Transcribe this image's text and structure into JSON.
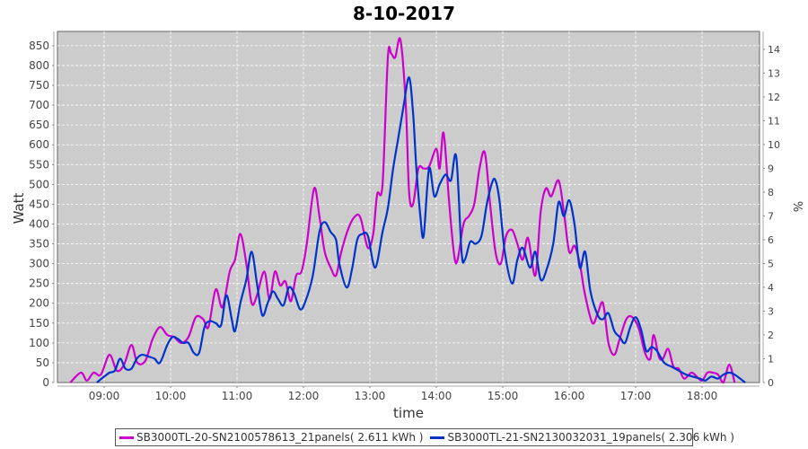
{
  "chart_data": {
    "type": "line",
    "title": "8-10-2017",
    "xlabel": "time",
    "ylabel": "Watt",
    "y2label": "%",
    "xlim": [
      8.297,
      18.865
    ],
    "ylim": [
      0,
      886
    ],
    "y2lim": [
      0,
      14.75
    ],
    "grid": true,
    "legend_position": "bottom",
    "x_ticks": [
      {
        "value": 9,
        "label": "09:00"
      },
      {
        "value": 10,
        "label": "10:00"
      },
      {
        "value": 11,
        "label": "11:00"
      },
      {
        "value": 12,
        "label": "12:00"
      },
      {
        "value": 13,
        "label": "13:00"
      },
      {
        "value": 14,
        "label": "14:00"
      },
      {
        "value": 15,
        "label": "15:00"
      },
      {
        "value": 16,
        "label": "16:00"
      },
      {
        "value": 17,
        "label": "17:00"
      },
      {
        "value": 18,
        "label": "18:00"
      }
    ],
    "y_ticks": [
      "0",
      "50",
      "100",
      "150",
      "200",
      "250",
      "300",
      "350",
      "400",
      "450",
      "500",
      "550",
      "600",
      "650",
      "700",
      "750",
      "800",
      "850"
    ],
    "y2_ticks": [
      "0",
      "1",
      "2",
      "3",
      "4",
      "5",
      "6",
      "7",
      "8",
      "9",
      "10",
      "11",
      "12",
      "13",
      "14"
    ],
    "series": [
      {
        "name": "SB3000TL-20-SN2100578613_21panels( 2.611 kWh )",
        "color": "#cc00cc",
        "points": [
          [
            8.49,
            0
          ],
          [
            8.65,
            25
          ],
          [
            8.74,
            5
          ],
          [
            8.84,
            25
          ],
          [
            8.95,
            20
          ],
          [
            9.08,
            70
          ],
          [
            9.19,
            30
          ],
          [
            9.3,
            45
          ],
          [
            9.41,
            95
          ],
          [
            9.5,
            50
          ],
          [
            9.62,
            55
          ],
          [
            9.73,
            110
          ],
          [
            9.84,
            140
          ],
          [
            9.95,
            120
          ],
          [
            10.05,
            115
          ],
          [
            10.16,
            100
          ],
          [
            10.27,
            115
          ],
          [
            10.38,
            165
          ],
          [
            10.49,
            160
          ],
          [
            10.57,
            140
          ],
          [
            10.68,
            235
          ],
          [
            10.78,
            190
          ],
          [
            10.89,
            280
          ],
          [
            10.97,
            310
          ],
          [
            11.05,
            375
          ],
          [
            11.14,
            300
          ],
          [
            11.22,
            200
          ],
          [
            11.3,
            220
          ],
          [
            11.41,
            280
          ],
          [
            11.49,
            210
          ],
          [
            11.57,
            280
          ],
          [
            11.65,
            245
          ],
          [
            11.73,
            255
          ],
          [
            11.81,
            205
          ],
          [
            11.89,
            270
          ],
          [
            11.97,
            280
          ],
          [
            12.05,
            350
          ],
          [
            12.16,
            490
          ],
          [
            12.24,
            420
          ],
          [
            12.32,
            330
          ],
          [
            12.41,
            290
          ],
          [
            12.49,
            270
          ],
          [
            12.57,
            330
          ],
          [
            12.68,
            390
          ],
          [
            12.78,
            420
          ],
          [
            12.86,
            415
          ],
          [
            12.97,
            340
          ],
          [
            13.05,
            375
          ],
          [
            13.11,
            475
          ],
          [
            13.19,
            500
          ],
          [
            13.27,
            820
          ],
          [
            13.32,
            830
          ],
          [
            13.38,
            820
          ],
          [
            13.46,
            865
          ],
          [
            13.54,
            700
          ],
          [
            13.59,
            480
          ],
          [
            13.65,
            450
          ],
          [
            13.73,
            540
          ],
          [
            13.81,
            540
          ],
          [
            13.89,
            545
          ],
          [
            14.0,
            590
          ],
          [
            14.05,
            540
          ],
          [
            14.11,
            630
          ],
          [
            14.19,
            460
          ],
          [
            14.27,
            320
          ],
          [
            14.32,
            310
          ],
          [
            14.41,
            400
          ],
          [
            14.49,
            420
          ],
          [
            14.57,
            450
          ],
          [
            14.65,
            540
          ],
          [
            14.73,
            580
          ],
          [
            14.81,
            450
          ],
          [
            14.89,
            330
          ],
          [
            14.97,
            300
          ],
          [
            15.05,
            370
          ],
          [
            15.14,
            385
          ],
          [
            15.22,
            350
          ],
          [
            15.3,
            310
          ],
          [
            15.38,
            365
          ],
          [
            15.49,
            270
          ],
          [
            15.57,
            430
          ],
          [
            15.65,
            490
          ],
          [
            15.73,
            470
          ],
          [
            15.84,
            510
          ],
          [
            15.92,
            430
          ],
          [
            16.0,
            330
          ],
          [
            16.08,
            345
          ],
          [
            16.16,
            300
          ],
          [
            16.24,
            220
          ],
          [
            16.35,
            150
          ],
          [
            16.43,
            175
          ],
          [
            16.51,
            200
          ],
          [
            16.59,
            100
          ],
          [
            16.68,
            70
          ],
          [
            16.76,
            110
          ],
          [
            16.86,
            160
          ],
          [
            16.95,
            165
          ],
          [
            17.05,
            135
          ],
          [
            17.14,
            75
          ],
          [
            17.22,
            60
          ],
          [
            17.27,
            120
          ],
          [
            17.35,
            65
          ],
          [
            17.41,
            60
          ],
          [
            17.49,
            85
          ],
          [
            17.57,
            40
          ],
          [
            17.65,
            35
          ],
          [
            17.73,
            10
          ],
          [
            17.84,
            25
          ],
          [
            17.92,
            15
          ],
          [
            18.0,
            5
          ],
          [
            18.08,
            25
          ],
          [
            18.16,
            25
          ],
          [
            18.24,
            20
          ],
          [
            18.32,
            0
          ],
          [
            18.41,
            45
          ],
          [
            18.49,
            0
          ]
        ]
      },
      {
        "name": "SB3000TL-21-SN2130032031_19panels( 2.306 kWh )",
        "color": "#0033cc",
        "points": [
          [
            8.89,
            0
          ],
          [
            9.0,
            15
          ],
          [
            9.08,
            25
          ],
          [
            9.16,
            30
          ],
          [
            9.24,
            60
          ],
          [
            9.32,
            35
          ],
          [
            9.41,
            35
          ],
          [
            9.49,
            60
          ],
          [
            9.57,
            70
          ],
          [
            9.68,
            65
          ],
          [
            9.76,
            60
          ],
          [
            9.84,
            50
          ],
          [
            9.95,
            95
          ],
          [
            10.03,
            115
          ],
          [
            10.11,
            110
          ],
          [
            10.19,
            100
          ],
          [
            10.27,
            100
          ],
          [
            10.35,
            75
          ],
          [
            10.43,
            75
          ],
          [
            10.51,
            140
          ],
          [
            10.59,
            155
          ],
          [
            10.68,
            150
          ],
          [
            10.76,
            145
          ],
          [
            10.84,
            220
          ],
          [
            10.92,
            160
          ],
          [
            10.97,
            130
          ],
          [
            11.05,
            200
          ],
          [
            11.14,
            260
          ],
          [
            11.22,
            330
          ],
          [
            11.3,
            250
          ],
          [
            11.38,
            170
          ],
          [
            11.46,
            200
          ],
          [
            11.54,
            230
          ],
          [
            11.62,
            210
          ],
          [
            11.7,
            195
          ],
          [
            11.78,
            240
          ],
          [
            11.86,
            225
          ],
          [
            11.95,
            185
          ],
          [
            12.03,
            205
          ],
          [
            12.14,
            270
          ],
          [
            12.24,
            380
          ],
          [
            12.32,
            405
          ],
          [
            12.41,
            380
          ],
          [
            12.49,
            360
          ],
          [
            12.54,
            300
          ],
          [
            12.65,
            240
          ],
          [
            12.73,
            285
          ],
          [
            12.81,
            360
          ],
          [
            12.89,
            375
          ],
          [
            12.97,
            370
          ],
          [
            13.08,
            290
          ],
          [
            13.19,
            380
          ],
          [
            13.27,
            440
          ],
          [
            13.35,
            540
          ],
          [
            13.43,
            620
          ],
          [
            13.51,
            700
          ],
          [
            13.59,
            770
          ],
          [
            13.65,
            680
          ],
          [
            13.7,
            540
          ],
          [
            13.76,
            420
          ],
          [
            13.81,
            370
          ],
          [
            13.89,
            540
          ],
          [
            13.97,
            470
          ],
          [
            14.05,
            500
          ],
          [
            14.14,
            525
          ],
          [
            14.22,
            510
          ],
          [
            14.3,
            570
          ],
          [
            14.38,
            330
          ],
          [
            14.43,
            310
          ],
          [
            14.51,
            355
          ],
          [
            14.59,
            350
          ],
          [
            14.68,
            370
          ],
          [
            14.76,
            450
          ],
          [
            14.84,
            505
          ],
          [
            14.89,
            510
          ],
          [
            14.95,
            460
          ],
          [
            15.03,
            330
          ],
          [
            15.14,
            250
          ],
          [
            15.22,
            310
          ],
          [
            15.3,
            340
          ],
          [
            15.41,
            290
          ],
          [
            15.49,
            330
          ],
          [
            15.57,
            260
          ],
          [
            15.65,
            280
          ],
          [
            15.76,
            350
          ],
          [
            15.84,
            455
          ],
          [
            15.92,
            420
          ],
          [
            16.0,
            460
          ],
          [
            16.08,
            400
          ],
          [
            16.16,
            290
          ],
          [
            16.24,
            330
          ],
          [
            16.32,
            230
          ],
          [
            16.43,
            170
          ],
          [
            16.51,
            160
          ],
          [
            16.59,
            175
          ],
          [
            16.68,
            130
          ],
          [
            16.76,
            115
          ],
          [
            16.84,
            100
          ],
          [
            16.92,
            140
          ],
          [
            17.0,
            165
          ],
          [
            17.08,
            135
          ],
          [
            17.16,
            80
          ],
          [
            17.24,
            90
          ],
          [
            17.32,
            80
          ],
          [
            17.43,
            50
          ],
          [
            17.54,
            40
          ],
          [
            17.65,
            30
          ],
          [
            17.76,
            20
          ],
          [
            17.86,
            15
          ],
          [
            17.97,
            10
          ],
          [
            18.05,
            5
          ],
          [
            18.14,
            15
          ],
          [
            18.24,
            10
          ],
          [
            18.32,
            20
          ],
          [
            18.41,
            25
          ],
          [
            18.49,
            20
          ],
          [
            18.65,
            0
          ]
        ]
      }
    ]
  }
}
